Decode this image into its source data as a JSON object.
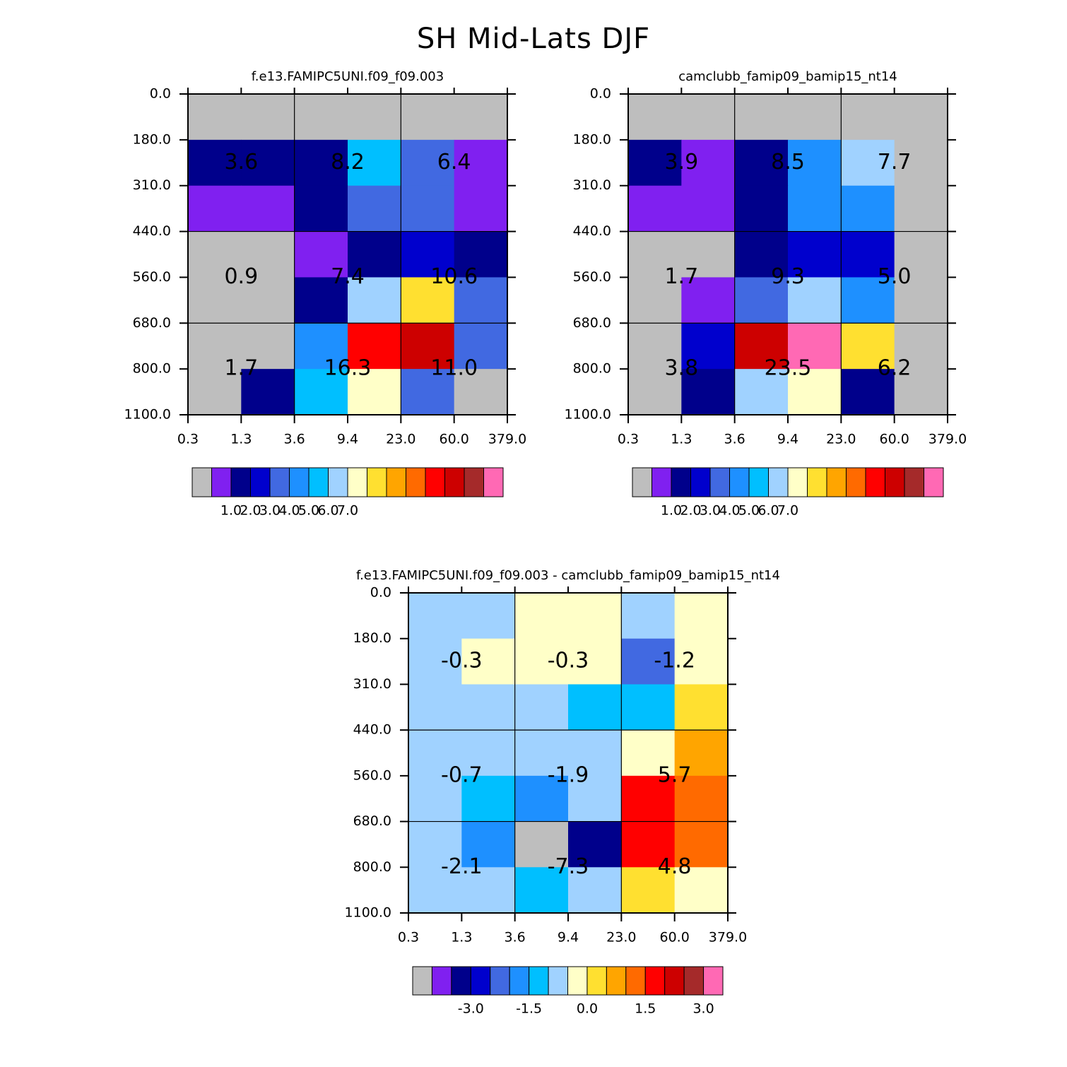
{
  "title": "SH Mid-Lats DJF",
  "colors": [
    "#bebebe",
    "#8020f0",
    "#00008b",
    "#0000cd",
    "#4169e1",
    "#1e90ff",
    "#00bfff",
    "#a0d2ff",
    "#ffffc8",
    "#ffe030",
    "#ffa500",
    "#ff6a00",
    "#ff0000",
    "#cd0000",
    "#a52a2a",
    "#ff69b4"
  ],
  "x_tick_labels": [
    "0.3",
    "1.3",
    "3.6",
    "9.4",
    "23.0",
    "60.0",
    "379.0"
  ],
  "y_tick_labels": [
    "0.0",
    "180.0",
    "310.0",
    "440.0",
    "560.0",
    "680.0",
    "800.0",
    "1100.0"
  ],
  "chart_data": [
    {
      "type": "heatmap",
      "title": "f.e13.FAMIPC5UNI.f09_f09.003",
      "grid_rows_top_to_bottom": [
        [
          0,
          0,
          0,
          0,
          0,
          0
        ],
        [
          2,
          2,
          2,
          6,
          4,
          1
        ],
        [
          1,
          1,
          2,
          4,
          4,
          1
        ],
        [
          0,
          0,
          1,
          2,
          3,
          2
        ],
        [
          0,
          0,
          2,
          7,
          9,
          4
        ],
        [
          0,
          0,
          5,
          12,
          13,
          4
        ],
        [
          0,
          2,
          6,
          8,
          4,
          0
        ]
      ],
      "cell_labels": [
        "3.6",
        "8.2",
        "6.4",
        "0.9",
        "7.4",
        "10.6",
        "1.7",
        "16.3",
        "11.0"
      ],
      "colorbar_labels": [
        "1.0",
        "2.0",
        "3.0",
        "4.0",
        "5.0",
        "6.0",
        "7.0"
      ]
    },
    {
      "type": "heatmap",
      "title": "camclubb_famip09_bamip15_nt14",
      "grid_rows_top_to_bottom": [
        [
          0,
          0,
          0,
          0,
          0,
          0
        ],
        [
          2,
          1,
          2,
          5,
          7,
          0
        ],
        [
          1,
          1,
          2,
          5,
          5,
          0
        ],
        [
          0,
          0,
          2,
          3,
          3,
          0
        ],
        [
          0,
          1,
          4,
          7,
          5,
          0
        ],
        [
          0,
          3,
          13,
          15,
          9,
          0
        ],
        [
          0,
          2,
          7,
          8,
          2,
          0
        ]
      ],
      "cell_labels": [
        "3.9",
        "8.5",
        "7.7",
        "1.7",
        "9.3",
        "5.0",
        "3.8",
        "23.5",
        "6.2"
      ],
      "colorbar_labels": [
        "1.0",
        "2.0",
        "3.0",
        "4.0",
        "5.0",
        "6.0",
        "7.0"
      ]
    },
    {
      "type": "heatmap",
      "title": "f.e13.FAMIPC5UNI.f09_f09.003 - camclubb_famip09_bamip15_nt14",
      "grid_rows_top_to_bottom": [
        [
          7,
          7,
          8,
          8,
          7,
          8
        ],
        [
          7,
          8,
          8,
          8,
          4,
          8
        ],
        [
          7,
          7,
          7,
          6,
          6,
          9
        ],
        [
          7,
          7,
          7,
          7,
          8,
          10
        ],
        [
          7,
          6,
          5,
          7,
          12,
          11
        ],
        [
          7,
          5,
          0,
          2,
          12,
          11
        ],
        [
          7,
          7,
          6,
          7,
          9,
          8
        ]
      ],
      "cell_labels": [
        "-0.3",
        "-0.3",
        "-1.2",
        "-0.7",
        "-1.9",
        "5.7",
        "-2.1",
        "-7.3",
        "4.8"
      ],
      "colorbar_labels": [
        "-3.0",
        "-1.5",
        "0.0",
        "1.5",
        "3.0"
      ]
    }
  ]
}
